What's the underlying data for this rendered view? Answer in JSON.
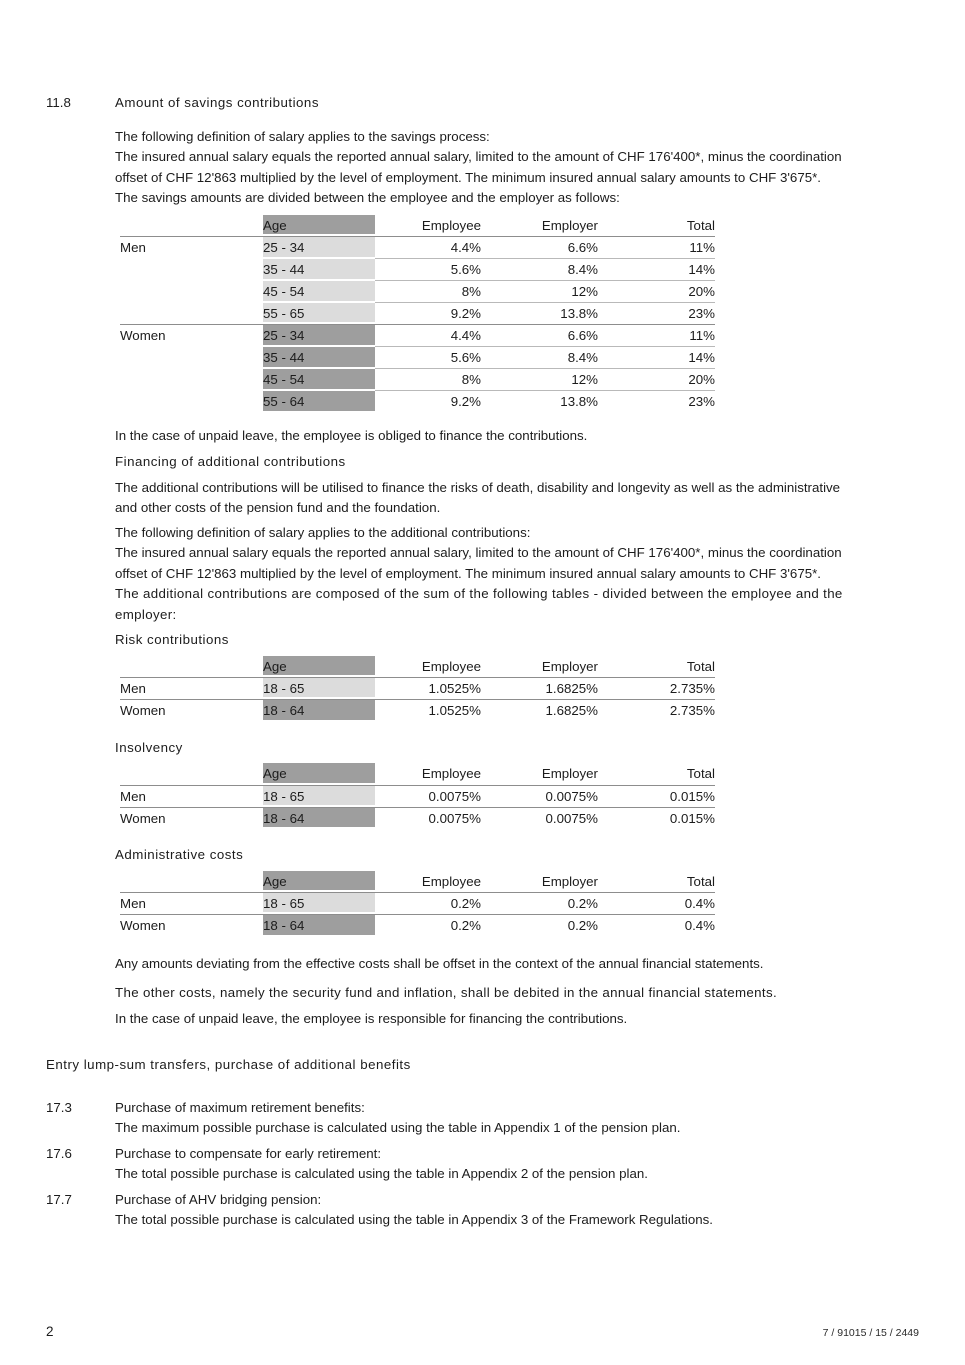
{
  "colors": {
    "age_header_bg": "#9e9e9e",
    "men_age_bg": "#dcdcdc",
    "women_age_bg": "#9e9e9e",
    "rule_strong": "#8d8d8d",
    "rule_light": "#b9b9b9",
    "text": "#1c1c1c"
  },
  "doc": {
    "section": {
      "number": "11.8",
      "title": "Amount of savings contributions"
    },
    "savings_intro": [
      "The following definition of salary applies to the savings process:",
      "The insured annual salary equals the reported annual salary, limited to the amount of CHF 176'400*, minus the coordination",
      "offset of CHF 12'863 multiplied by the level of employment. The minimum insured annual salary amounts to CHF 3'675*.",
      "The savings amounts are divided between the employee and the employer as follows:"
    ],
    "savings_note": "In the case of unpaid leave, the employee is obliged to finance the contributions.",
    "financing": {
      "title": "Financing of additional contributions",
      "p1": [
        "The additional contributions will be utilised to finance the risks of death, disability and longevity as well as the administrative",
        "and other costs of the pension fund and the foundation."
      ],
      "p2": [
        "The following definition of salary applies to the additional contributions:",
        "The insured annual salary equals the reported annual salary, limited to the amount of CHF 176'400*, minus the coordination",
        "offset of CHF 12'863 multiplied by the level of employment. The minimum insured annual salary amounts to CHF 3'675*.",
        "The additional contributions are composed of the sum of the following tables - divided between the employee and the",
        "employer:"
      ]
    },
    "risk_title": "Risk contributions",
    "insolvency_title": "Insolvency",
    "admin_title": "Administrative costs",
    "closing": [
      "Any amounts deviating from the effective costs shall be offset in the context of the annual financial statements.",
      "The other costs, namely the security fund and inflation, shall be debited in the annual financial statements.",
      "In the case of unpaid leave, the employee is responsible for financing the contributions."
    ],
    "entry_heading": "Entry lump-sum transfers, purchase of additional benefits",
    "purchases": [
      {
        "number": "17.3",
        "title": "Purchase of maximum retirement benefits:",
        "body": "The maximum possible purchase is calculated using the table in Appendix 1 of the pension plan."
      },
      {
        "number": "17.6",
        "title": "Purchase to compensate for early retirement:",
        "body": "The total possible purchase is calculated using the table in Appendix 2 of the pension plan."
      },
      {
        "number": "17.7",
        "title": "Purchase of AHV bridging pension:",
        "body": "The total possible purchase is calculated using the table in Appendix 3 of the Framework Regulations."
      }
    ],
    "footer": {
      "page": "2",
      "ref": "7 / 91015 / 15 / 2449"
    }
  },
  "tables": {
    "headers": [
      "Age",
      "Employee",
      "Employer",
      "Total"
    ],
    "group_labels": [
      "Men",
      "Women"
    ],
    "savings": {
      "men": [
        [
          "25 - 34",
          "4.4%",
          "6.6%",
          "11%"
        ],
        [
          "35 - 44",
          "5.6%",
          "8.4%",
          "14%"
        ],
        [
          "45 - 54",
          "8%",
          "12%",
          "20%"
        ],
        [
          "55 - 65",
          "9.2%",
          "13.8%",
          "23%"
        ]
      ],
      "women": [
        [
          "25 - 34",
          "4.4%",
          "6.6%",
          "11%"
        ],
        [
          "35 - 44",
          "5.6%",
          "8.4%",
          "14%"
        ],
        [
          "45 - 54",
          "8%",
          "12%",
          "20%"
        ],
        [
          "55 - 64",
          "9.2%",
          "13.8%",
          "23%"
        ]
      ]
    },
    "risk": {
      "men": [
        "18 - 65",
        "1.0525%",
        "1.6825%",
        "2.735%"
      ],
      "women": [
        "18 - 64",
        "1.0525%",
        "1.6825%",
        "2.735%"
      ]
    },
    "insolvency": {
      "men": [
        "18 - 65",
        "0.0075%",
        "0.0075%",
        "0.015%"
      ],
      "women": [
        "18 - 64",
        "0.0075%",
        "0.0075%",
        "0.015%"
      ]
    },
    "admin": {
      "men": [
        "18 - 65",
        "0.2%",
        "0.2%",
        "0.4%"
      ],
      "women": [
        "18 - 64",
        "0.2%",
        "0.2%",
        "0.4%"
      ]
    }
  }
}
